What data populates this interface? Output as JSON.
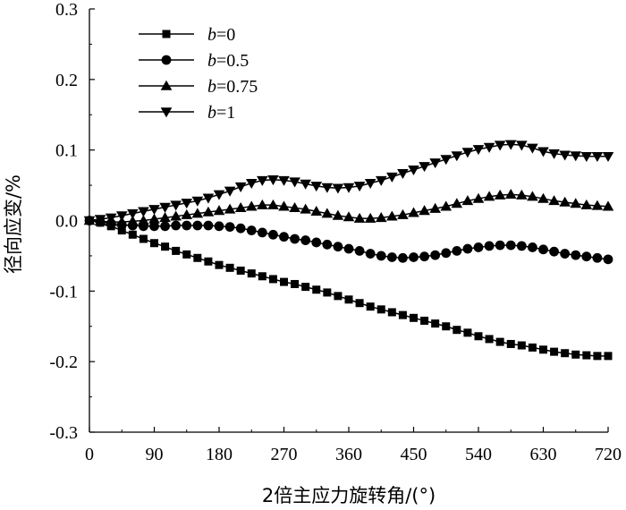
{
  "chart_data": {
    "type": "line",
    "title": "",
    "xlabel": "2倍主应力旋转角/(°)",
    "ylabel": "径向应变/%",
    "xlim": [
      0,
      720
    ],
    "ylim": [
      -0.3,
      0.3
    ],
    "xticks": [
      "0",
      "90",
      "180",
      "270",
      "360",
      "450",
      "540",
      "630",
      "720"
    ],
    "yticks": [
      "-0.3",
      "-0.2",
      "-0.1",
      "0.0",
      "0.1",
      "0.2",
      "0.3"
    ],
    "grid": false,
    "legend_position": "top-left",
    "x": [
      0,
      15,
      30,
      45,
      60,
      75,
      90,
      105,
      120,
      135,
      150,
      165,
      180,
      195,
      210,
      225,
      240,
      255,
      270,
      285,
      300,
      315,
      330,
      345,
      360,
      375,
      390,
      405,
      420,
      435,
      450,
      465,
      480,
      495,
      510,
      525,
      540,
      555,
      570,
      585,
      600,
      615,
      630,
      645,
      660,
      675,
      690,
      705,
      720
    ],
    "series": [
      {
        "name": "b=0",
        "marker": "square",
        "values": [
          0,
          -0.003,
          -0.008,
          -0.014,
          -0.02,
          -0.026,
          -0.032,
          -0.037,
          -0.043,
          -0.048,
          -0.053,
          -0.058,
          -0.063,
          -0.067,
          -0.071,
          -0.075,
          -0.079,
          -0.083,
          -0.087,
          -0.09,
          -0.094,
          -0.098,
          -0.102,
          -0.107,
          -0.112,
          -0.117,
          -0.122,
          -0.126,
          -0.13,
          -0.134,
          -0.138,
          -0.142,
          -0.146,
          -0.15,
          -0.155,
          -0.159,
          -0.164,
          -0.168,
          -0.172,
          -0.175,
          -0.177,
          -0.18,
          -0.183,
          -0.186,
          -0.188,
          -0.19,
          -0.191,
          -0.192,
          -0.192
        ]
      },
      {
        "name": "b=0.5",
        "marker": "circle",
        "values": [
          0,
          -0.002,
          -0.004,
          -0.006,
          -0.007,
          -0.008,
          -0.008,
          -0.008,
          -0.007,
          -0.007,
          -0.007,
          -0.007,
          -0.008,
          -0.009,
          -0.011,
          -0.014,
          -0.017,
          -0.02,
          -0.023,
          -0.026,
          -0.028,
          -0.031,
          -0.034,
          -0.037,
          -0.04,
          -0.043,
          -0.047,
          -0.05,
          -0.052,
          -0.053,
          -0.052,
          -0.051,
          -0.049,
          -0.046,
          -0.043,
          -0.04,
          -0.038,
          -0.036,
          -0.035,
          -0.035,
          -0.036,
          -0.038,
          -0.041,
          -0.044,
          -0.047,
          -0.049,
          -0.051,
          -0.053,
          -0.055
        ]
      },
      {
        "name": "b=0.75",
        "marker": "triangle-up",
        "values": [
          0,
          -0.001,
          -0.002,
          -0.002,
          -0.001,
          0.0,
          0.002,
          0.004,
          0.006,
          0.008,
          0.01,
          0.012,
          0.014,
          0.016,
          0.018,
          0.02,
          0.022,
          0.022,
          0.02,
          0.018,
          0.016,
          0.013,
          0.01,
          0.007,
          0.005,
          0.003,
          0.003,
          0.004,
          0.006,
          0.008,
          0.011,
          0.014,
          0.017,
          0.02,
          0.024,
          0.028,
          0.031,
          0.034,
          0.036,
          0.037,
          0.036,
          0.034,
          0.031,
          0.028,
          0.026,
          0.024,
          0.022,
          0.021,
          0.02
        ]
      },
      {
        "name": "b=1",
        "marker": "triangle-down",
        "values": [
          0,
          0.002,
          0.004,
          0.007,
          0.01,
          0.013,
          0.016,
          0.019,
          0.022,
          0.025,
          0.028,
          0.032,
          0.037,
          0.042,
          0.048,
          0.053,
          0.057,
          0.058,
          0.057,
          0.055,
          0.052,
          0.049,
          0.047,
          0.046,
          0.047,
          0.049,
          0.053,
          0.057,
          0.062,
          0.067,
          0.072,
          0.077,
          0.082,
          0.087,
          0.092,
          0.097,
          0.101,
          0.104,
          0.107,
          0.108,
          0.107,
          0.103,
          0.098,
          0.095,
          0.093,
          0.092,
          0.091,
          0.091,
          0.091
        ]
      }
    ]
  }
}
